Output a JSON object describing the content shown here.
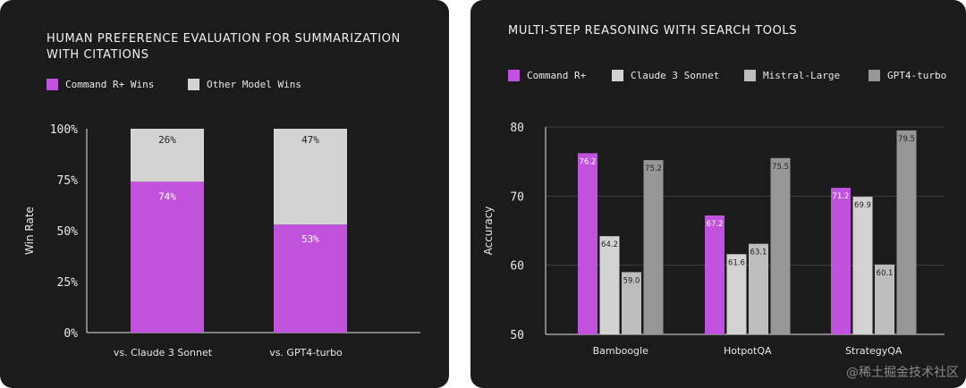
{
  "colors": {
    "command": "#c152dd",
    "claude": "#d3d3d3",
    "mistral": "#bdbdbd",
    "gpt": "#969696",
    "other": "#d3d3d3"
  },
  "left": {
    "title_line1": "HUMAN PREFERENCE EVALUATION FOR SUMMARIZATION",
    "title_line2": "WITH CITATIONS",
    "legend": [
      "Command R+ Wins",
      "Other Model Wins"
    ]
  },
  "right": {
    "title": "MULTI-STEP REASONING WITH SEARCH TOOLS",
    "legend": [
      "Command R+",
      "Claude 3 Sonnet",
      "Mistral-Large",
      "GPT4-turbo"
    ]
  },
  "watermark": "@稀土掘金技术社区",
  "chart_data": [
    {
      "type": "bar",
      "stacked": true,
      "title": "HUMAN PREFERENCE EVALUATION FOR SUMMARIZATION WITH CITATIONS",
      "ylabel": "Win Rate",
      "ylim": [
        0,
        100
      ],
      "yticks": [
        "0%",
        "25%",
        "50%",
        "75%",
        "100%"
      ],
      "categories": [
        "vs. Claude 3 Sonnet",
        "vs. GPT4-turbo"
      ],
      "series": [
        {
          "name": "Command R+ Wins",
          "values": [
            74,
            53
          ],
          "labels": [
            "74%",
            "53%"
          ]
        },
        {
          "name": "Other Model Wins",
          "values": [
            26,
            47
          ],
          "labels": [
            "26%",
            "47%"
          ]
        }
      ]
    },
    {
      "type": "bar",
      "title": "MULTI-STEP REASONING WITH SEARCH TOOLS",
      "ylabel": "Accuracy",
      "ylim": [
        50,
        80
      ],
      "yticks": [
        "50",
        "60",
        "70",
        "80"
      ],
      "categories": [
        "Bamboogle",
        "HotpotQA",
        "StrategyQA"
      ],
      "series": [
        {
          "name": "Command R+",
          "values": [
            76.2,
            67.2,
            71.2
          ],
          "labels": [
            "76.2",
            "67.2",
            "71.2"
          ]
        },
        {
          "name": "Claude 3 Sonnet",
          "values": [
            64.2,
            61.6,
            69.9
          ],
          "labels": [
            "64.2",
            "61.6",
            "69.9"
          ]
        },
        {
          "name": "Mistral-Large",
          "values": [
            59.0,
            63.1,
            60.1
          ],
          "labels": [
            "59.0",
            "63.1",
            "60.1"
          ]
        },
        {
          "name": "GPT4-turbo",
          "values": [
            75.2,
            75.5,
            79.5
          ],
          "labels": [
            "75.2",
            "75.5",
            "79.5"
          ]
        }
      ]
    }
  ]
}
